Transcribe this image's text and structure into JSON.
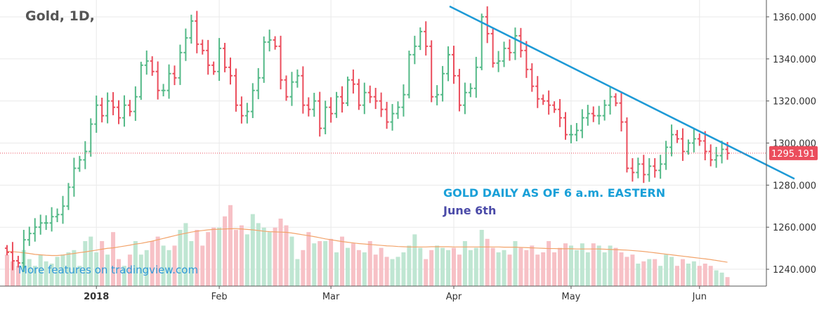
{
  "chart_data": {
    "type": "ohlc",
    "title": "Gold, 1D,",
    "price_axis": {
      "min": 1232,
      "max": 1368,
      "ticks": [
        1240,
        1260,
        1280,
        1300,
        1320,
        1340,
        1360
      ],
      "tick_labels": [
        "1240.000",
        "1260.000",
        "1280.000",
        "1300.000",
        "1320.000",
        "1340.000",
        "1360.000"
      ],
      "position": "right",
      "current_price": 1295.191,
      "current_price_label": "1295.191"
    },
    "x_axis": {
      "ticks": [
        {
          "label": "2018",
          "bar": 16,
          "bold": true
        },
        {
          "label": "Feb",
          "bar": 38,
          "bold": false
        },
        {
          "label": "Mar",
          "bar": 58,
          "bold": false
        },
        {
          "label": "Apr",
          "bar": 80,
          "bold": false
        },
        {
          "label": "May",
          "bar": 101,
          "bold": false
        },
        {
          "label": "Jun",
          "bar": 124,
          "bold": false
        }
      ]
    },
    "grid": true,
    "closes": [
      1248,
      1244,
      1243,
      1254,
      1257,
      1260,
      1262,
      1262,
      1265,
      1266,
      1270,
      1279,
      1288,
      1292,
      1296,
      1309,
      1318,
      1313,
      1320,
      1317,
      1312,
      1318,
      1315,
      1322,
      1337,
      1339,
      1334,
      1325,
      1325,
      1333,
      1331,
      1343,
      1350,
      1358,
      1347,
      1344,
      1337,
      1334,
      1345,
      1336,
      1332,
      1318,
      1313,
      1315,
      1325,
      1331,
      1348,
      1349,
      1346,
      1330,
      1322,
      1329,
      1332,
      1318,
      1316,
      1320,
      1307,
      1317,
      1314,
      1322,
      1319,
      1330,
      1328,
      1318,
      1324,
      1322,
      1320,
      1316,
      1310,
      1314,
      1317,
      1323,
      1342,
      1346,
      1353,
      1346,
      1322,
      1323,
      1333,
      1342,
      1332,
      1318,
      1324,
      1326,
      1336,
      1360,
      1352,
      1338,
      1339,
      1345,
      1343,
      1351,
      1344,
      1335,
      1327,
      1321,
      1320,
      1318,
      1316,
      1312,
      1304,
      1304,
      1306,
      1312,
      1314,
      1313,
      1313,
      1318,
      1322,
      1319,
      1310,
      1288,
      1286,
      1290,
      1285,
      1289,
      1287,
      1290,
      1298,
      1304,
      1302,
      1296,
      1300,
      1302,
      1301,
      1296,
      1292,
      1294,
      1297,
      1295.191
    ],
    "volume": [
      14,
      11,
      9,
      16,
      12,
      9,
      14,
      11,
      10,
      13,
      14,
      15,
      16,
      9,
      20,
      22,
      15,
      20,
      14,
      24,
      12,
      9,
      14,
      20,
      14,
      16,
      20,
      22,
      18,
      16,
      18,
      25,
      28,
      20,
      25,
      18,
      24,
      26,
      26,
      31,
      36,
      25,
      27,
      23,
      32,
      28,
      26,
      24,
      26,
      30,
      27,
      22,
      12,
      16,
      24,
      19,
      20,
      20,
      21,
      15,
      22,
      17,
      19,
      16,
      15,
      20,
      14,
      17,
      13,
      12,
      13,
      15,
      18,
      23,
      17,
      12,
      16,
      18,
      17,
      16,
      17,
      14,
      20,
      16,
      17,
      25,
      21,
      17,
      15,
      16,
      14,
      20,
      17,
      16,
      18,
      14,
      15,
      20,
      15,
      17,
      19,
      18,
      16,
      19,
      15,
      19,
      18,
      15,
      18,
      17,
      15,
      13,
      14,
      10,
      11,
      12,
      12,
      9,
      14,
      13,
      9,
      12,
      10,
      11,
      9,
      10,
      9,
      7,
      6,
      4
    ],
    "volume_ma": [
      15.5,
      15.3,
      15.1,
      14.8,
      14.5,
      14.1,
      13.9,
      13.7,
      13.6,
      13.6,
      13.8,
      14.2,
      14.5,
      14.9,
      15.2,
      15.6,
      16,
      16.4,
      16.8,
      17,
      17.4,
      17.8,
      18.2,
      18.7,
      19,
      19.5,
      20,
      20.6,
      21.2,
      21.8,
      22.4,
      23,
      23.5,
      24,
      24.4,
      24.7,
      25,
      25.2,
      25.3,
      25.4,
      25.5,
      25.5,
      25.4,
      25.2,
      25,
      24.7,
      24.4,
      24.2,
      24.1,
      24,
      23.9,
      23.6,
      23.2,
      22.8,
      22.4,
      22,
      21.5,
      21,
      20.6,
      20.2,
      19.8,
      19.5,
      19.2,
      18.9,
      18.7,
      18.5,
      18.3,
      18.1,
      17.9,
      17.8,
      17.6,
      17.5,
      17.4,
      17.4,
      17.4,
      17.4,
      17.5,
      17.5,
      17.5,
      17.5,
      17.4,
      17.4,
      17.4,
      17.4,
      17.4,
      17.4,
      17.4,
      17.4,
      17.4,
      17.3,
      17.3,
      17.3,
      17.2,
      17.1,
      17,
      16.9,
      16.8,
      16.7,
      16.7,
      16.6,
      16.6,
      16.6,
      16.5,
      16.5,
      16.5,
      16.5,
      16.5,
      16.4,
      16.3,
      16.2,
      16.1,
      16,
      15.8,
      15.6,
      15.4,
      15.1,
      14.8,
      14.5,
      14.2,
      13.9,
      13.6,
      13.3,
      13,
      12.7,
      12.4,
      12.1,
      11.8,
      11.4,
      11,
      10.6
    ],
    "trendline": {
      "from_bar": 80,
      "from_price": 1365,
      "to_bar": 141,
      "to_price": 1283
    },
    "annotations": [
      "GOLD DAILY AS OF 6 a.m. EASTERN",
      "June 6th"
    ],
    "watermark": "More features on tradingview.com"
  },
  "colors": {
    "up": "#53b987",
    "down": "#eb4d5c",
    "volume_up": "#bfe6d2",
    "volume_down": "#f7c1c6",
    "volume_ma": "#f2a36a",
    "trendline": "#1e9ad6",
    "grid": "#eaeaea",
    "price_line": "#eb4d5c",
    "axis": "#555555"
  }
}
